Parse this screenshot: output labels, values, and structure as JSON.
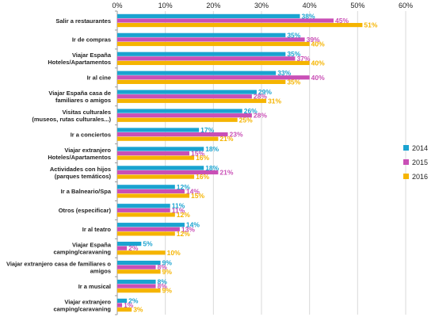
{
  "chart_data": {
    "type": "bar",
    "orientation": "horizontal",
    "x_ticks": [
      "0%",
      "10%",
      "20%",
      "30%",
      "40%",
      "50%",
      "60%"
    ],
    "xlim": [
      0,
      60
    ],
    "unit": "%",
    "grid": true,
    "legend_position": "right",
    "categories": [
      [
        "Salir a restaurantes"
      ],
      [
        "Ir de compras"
      ],
      [
        "Viajar España",
        "Hoteles/Apartamentos"
      ],
      [
        "Ir al cine"
      ],
      [
        "Viajar España casa de",
        "familiares o amigos"
      ],
      [
        "Visitas culturales",
        "(museos, rutas culturales...)"
      ],
      [
        "Ir a conciertos"
      ],
      [
        "Viajar extranjero",
        "Hoteles/Apartamentos"
      ],
      [
        "Actividades con hijos",
        "(parques temáticos)"
      ],
      [
        "Ir a Balneario/Spa"
      ],
      [
        "Otros (especificar)"
      ],
      [
        "Ir al teatro"
      ],
      [
        "Viajar España",
        "camping/caravaning"
      ],
      [
        "Viajar extranjero casa de familiares o",
        "amigos"
      ],
      [
        "Ir a musical"
      ],
      [
        "Viajar extranjero",
        "camping/caravaning"
      ]
    ],
    "series": [
      {
        "name": "2014",
        "color": "#1aa3d0",
        "values": [
          38,
          35,
          35,
          33,
          29,
          26,
          17,
          18,
          18,
          12,
          11,
          14,
          5,
          9,
          8,
          2
        ]
      },
      {
        "name": "2015",
        "color": "#c94fb6",
        "values": [
          45,
          39,
          37,
          40,
          28,
          28,
          23,
          15,
          21,
          14,
          11,
          13,
          2,
          8,
          8,
          1
        ]
      },
      {
        "name": "2016",
        "color": "#f5b400",
        "values": [
          51,
          40,
          40,
          35,
          31,
          25,
          21,
          16,
          16,
          15,
          12,
          12,
          10,
          9,
          9,
          3
        ]
      }
    ]
  }
}
